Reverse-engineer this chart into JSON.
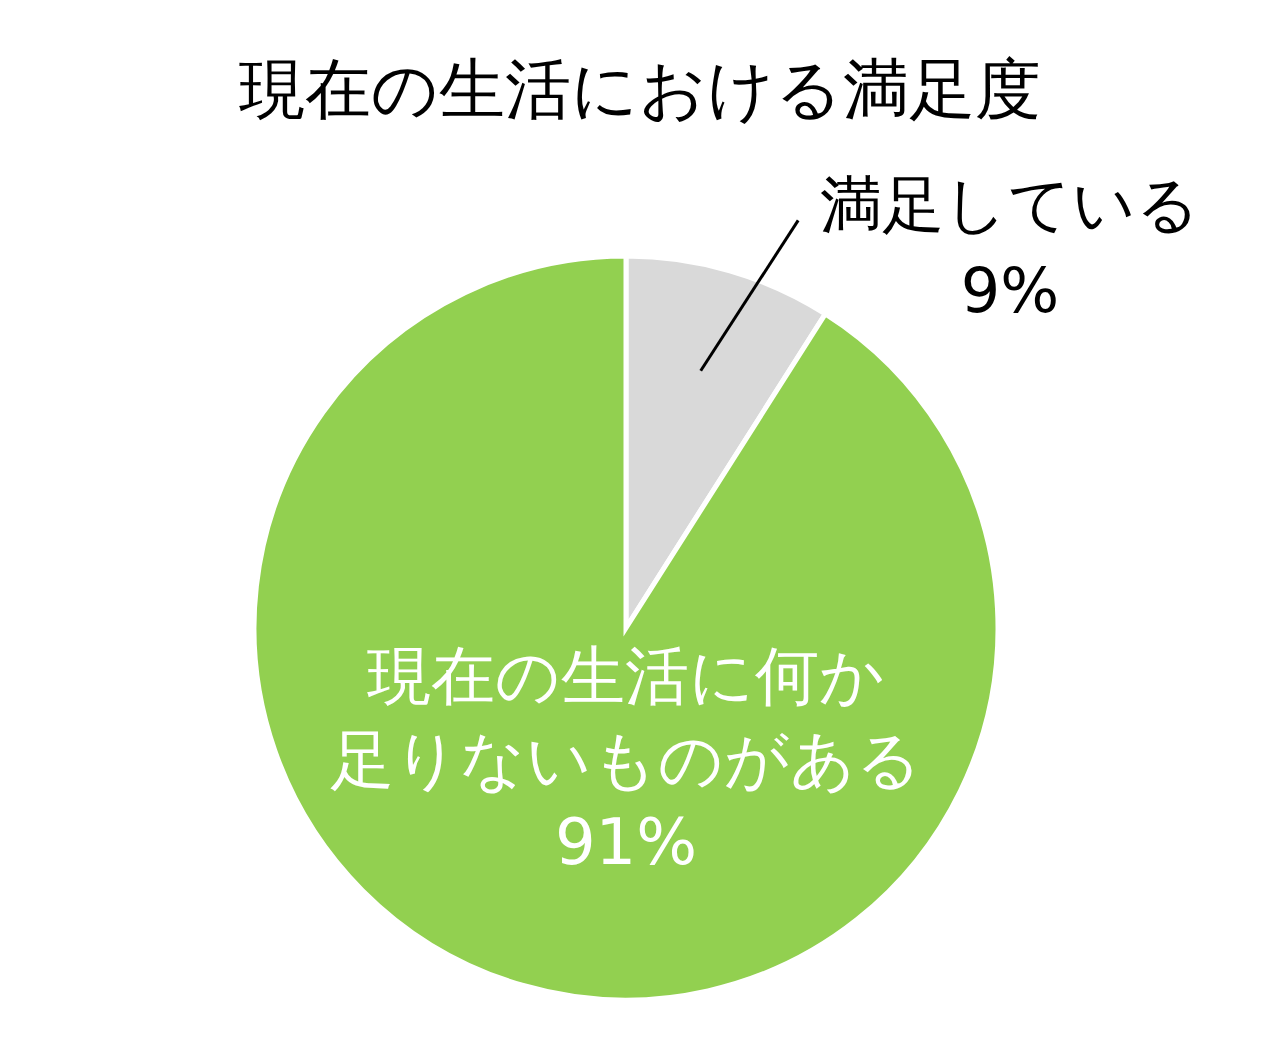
{
  "chart_data": {
    "type": "pie",
    "title": "現在の生活における満足度",
    "categories": [
      "満足している",
      "現在の生活に何か足りないものがある"
    ],
    "values": [
      9,
      91
    ],
    "colors": [
      "#d9d9d9",
      "#92d050"
    ],
    "value_labels": [
      "9%",
      "91%"
    ]
  }
}
